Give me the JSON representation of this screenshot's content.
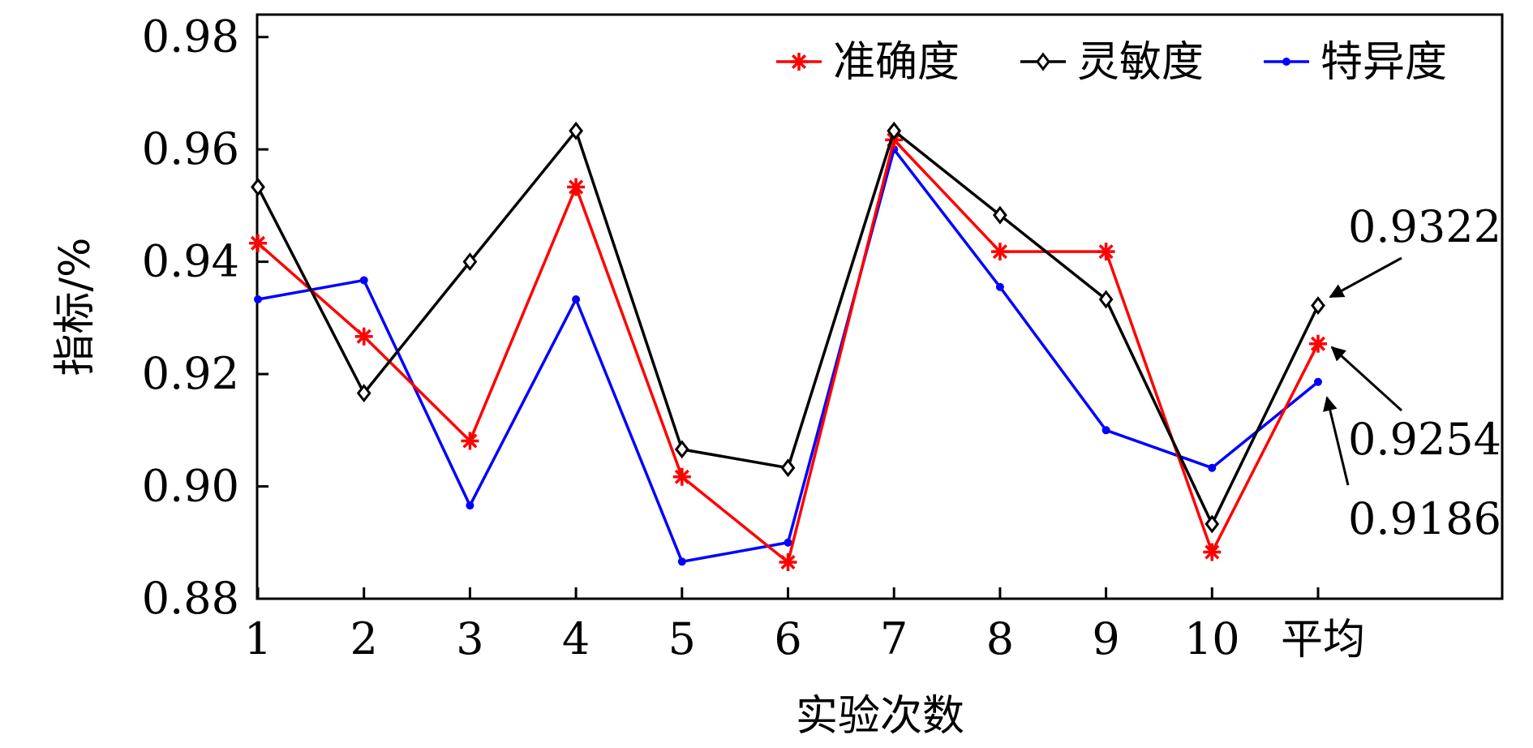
{
  "chart_data": {
    "type": "line",
    "title": "",
    "xlabel": "实验次数",
    "ylabel": "指标/%",
    "categories": [
      "1",
      "2",
      "3",
      "4",
      "5",
      "6",
      "7",
      "8",
      "9",
      "10",
      "平均"
    ],
    "ylim": [
      0.88,
      0.984
    ],
    "yticks": [
      "0.88",
      "0.90",
      "0.92",
      "0.94",
      "0.96",
      "0.98"
    ],
    "ytick_values": [
      0.88,
      0.9,
      0.92,
      0.94,
      0.96,
      0.98
    ],
    "grid": false,
    "legend_position": "top-right",
    "series": [
      {
        "name": "准确度",
        "color": "#ff0000",
        "marker": "asterisk",
        "values": [
          0.9433,
          0.9267,
          0.9081,
          0.9533,
          0.9017,
          0.8865,
          0.9617,
          0.9418,
          0.9418,
          0.8883,
          0.9254
        ]
      },
      {
        "name": "灵敏度",
        "color": "#000000",
        "marker": "diamond",
        "values": [
          0.9533,
          0.9166,
          0.94,
          0.9633,
          0.9066,
          0.9033,
          0.9633,
          0.9483,
          0.9333,
          0.8933,
          0.9322
        ]
      },
      {
        "name": "特异度",
        "color": "#0000ff",
        "marker": "dot",
        "values": [
          0.9333,
          0.9367,
          0.8966,
          0.9333,
          0.8866,
          0.89,
          0.96,
          0.9355,
          0.91,
          0.9033,
          0.9186
        ]
      }
    ],
    "annotations": [
      {
        "text": "0.9322",
        "series": 1,
        "index": 10
      },
      {
        "text": "0.9254",
        "series": 0,
        "index": 10
      },
      {
        "text": "0.9186",
        "series": 2,
        "index": 10
      }
    ]
  }
}
